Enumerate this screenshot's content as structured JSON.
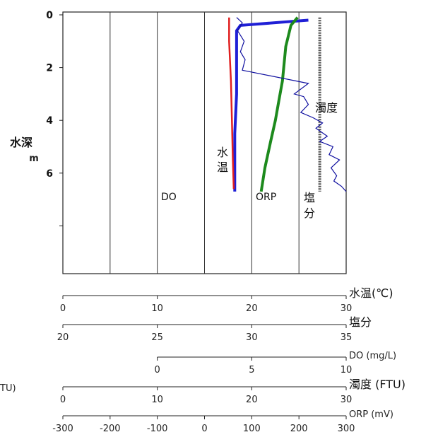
{
  "chart_data": {
    "type": "line",
    "y_axis": {
      "label": "水深",
      "unit": "m",
      "ticks": [
        "0",
        "2",
        "4",
        "6"
      ],
      "range": [
        0,
        10
      ],
      "direction": "down"
    },
    "series": [
      {
        "name": "DO",
        "color": "#1f1fd6",
        "axis": "DO",
        "points": [
          [
            8.0,
            0.2
          ],
          [
            4.4,
            0.4
          ],
          [
            4.2,
            0.6
          ],
          [
            4.2,
            1.5
          ],
          [
            4.2,
            3.0
          ],
          [
            4.1,
            4.5
          ],
          [
            4.1,
            6.0
          ],
          [
            4.1,
            6.7
          ]
        ]
      },
      {
        "name": "水温",
        "color": "#e02020",
        "axis": "水温",
        "points": [
          [
            17.6,
            0.1
          ],
          [
            17.6,
            1.0
          ],
          [
            17.8,
            2.5
          ],
          [
            17.9,
            4.0
          ],
          [
            18.0,
            5.5
          ],
          [
            18.1,
            6.6
          ]
        ]
      },
      {
        "name": "ORP",
        "color": "#1d8a1d",
        "axis": "ORP",
        "points": [
          [
            197,
            0.1
          ],
          [
            183,
            0.4
          ],
          [
            172,
            1.2
          ],
          [
            165,
            2.5
          ],
          [
            158,
            3.2
          ],
          [
            150,
            4.0
          ],
          [
            140,
            4.8
          ],
          [
            128,
            5.8
          ],
          [
            120,
            6.7
          ]
        ]
      },
      {
        "name": "塩分",
        "color": "#555555",
        "axis": "塩分",
        "points": [
          [
            33.6,
            0.1
          ],
          [
            33.6,
            1.5
          ],
          [
            33.6,
            3.0
          ],
          [
            33.6,
            4.5
          ],
          [
            33.6,
            6.0
          ],
          [
            33.6,
            6.7
          ]
        ]
      },
      {
        "name": "濁度",
        "color": "#1010a0",
        "axis": "濁度",
        "points": [
          [
            18.4,
            0.1
          ],
          [
            19.0,
            0.3
          ],
          [
            18.5,
            0.6
          ],
          [
            19.2,
            1.0
          ],
          [
            18.8,
            1.4
          ],
          [
            19.3,
            1.7
          ],
          [
            19.0,
            2.1
          ],
          [
            26.0,
            2.6
          ],
          [
            24.5,
            3.0
          ],
          [
            25.5,
            3.1
          ],
          [
            26.0,
            3.4
          ],
          [
            25.2,
            3.7
          ],
          [
            26.5,
            3.9
          ],
          [
            27.5,
            4.1
          ],
          [
            26.8,
            4.3
          ],
          [
            28.0,
            4.6
          ],
          [
            27.2,
            4.8
          ],
          [
            28.6,
            5.0
          ],
          [
            28.2,
            5.3
          ],
          [
            29.3,
            5.5
          ],
          [
            28.4,
            5.8
          ],
          [
            29.0,
            6.1
          ],
          [
            28.7,
            6.3
          ],
          [
            29.5,
            6.5
          ],
          [
            30.0,
            6.7
          ]
        ]
      }
    ],
    "x_axes": [
      {
        "key": "水温",
        "label": "水温(℃)",
        "ticks": [
          "0",
          "10",
          "20",
          "30"
        ],
        "min": 0,
        "max": 30
      },
      {
        "key": "塩分",
        "label": "塩分",
        "ticks": [
          "20",
          "25",
          "30",
          "35"
        ],
        "min": 20,
        "max": 35
      },
      {
        "key": "DO",
        "label": "DO (mg/L)",
        "ticks": [
          "0",
          "5",
          "10"
        ],
        "min": 0,
        "max": 10
      },
      {
        "key": "濁度",
        "label": "濁度 (FTU)",
        "ticks": [
          "0",
          "10",
          "20",
          "30"
        ],
        "min": 0,
        "max": 30
      },
      {
        "key": "ORP",
        "label": "ORP (mV)",
        "ticks": [
          "-300",
          "-200",
          "-100",
          "0",
          "100",
          "200",
          "300"
        ],
        "min": -300,
        "max": 300
      }
    ],
    "series_labels": {
      "DO": "DO",
      "水温": [
        "水",
        "温"
      ],
      "ORP": "ORP",
      "塩分": [
        "塩",
        "分"
      ],
      "濁度": "濁度"
    },
    "cut_off_left_text": "TU)",
    "grid": true
  }
}
